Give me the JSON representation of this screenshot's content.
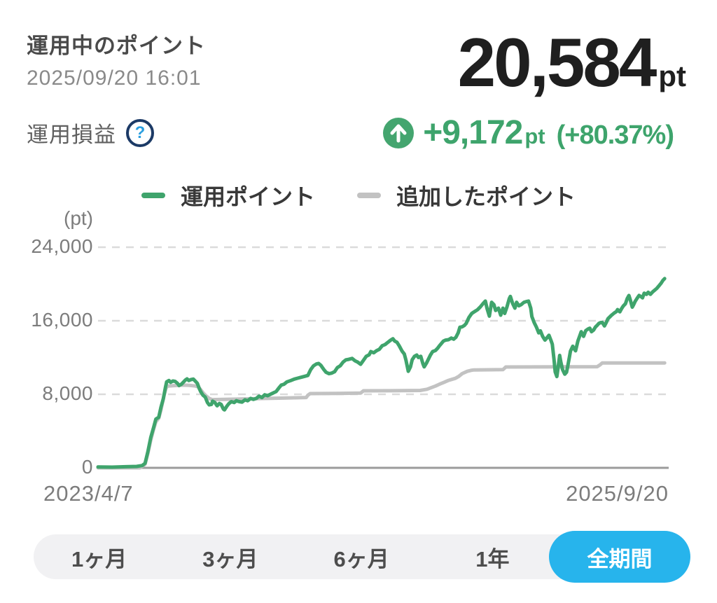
{
  "header": {
    "title": "運用中のポイント",
    "timestamp": "2025/09/20 16:01",
    "total_points": "20,584",
    "total_points_unit": "pt",
    "profit_label": "運用損益",
    "help_icon": "question-mark-circle-icon",
    "profit_icon": "up-arrow-circle-icon",
    "profit_value": "+9,172",
    "profit_unit": "pt",
    "profit_percent": "(+80.37%)"
  },
  "colors": {
    "accent_green": "#3fa46c",
    "added_line_gray": "#c2c2c2",
    "selected_blue": "#27b4ec",
    "big_number_black": "#1f1f1f",
    "axis_gray": "#9b9b9b",
    "grid_gray": "#dbdbdb",
    "help_ring_navy": "#1c3a66",
    "help_question_blue": "#2b9fe0"
  },
  "legend": [
    {
      "label": "運用ポイント",
      "color": "#3fa46c"
    },
    {
      "label": "追加したポイント",
      "color": "#c2c2c2"
    }
  ],
  "chart_data": {
    "type": "line",
    "title": "",
    "unit_label": "(pt)",
    "xlabel": "",
    "ylabel": "pt",
    "ylim": [
      0,
      26000
    ],
    "y_ticks": [
      "24,000",
      "16,000",
      "8,000",
      "0"
    ],
    "y_tick_values": [
      24000,
      16000,
      8000,
      0
    ],
    "x_start_label": "2023/4/7",
    "x_end_label": "2025/9/20",
    "grid": "horizontal dashed",
    "legend_position": "top center",
    "series": [
      {
        "name": "運用ポイント",
        "color": "#3fa46c",
        "points": [
          [
            0.0,
            100
          ],
          [
            0.025,
            80
          ],
          [
            0.049,
            120
          ],
          [
            0.068,
            150
          ],
          [
            0.078,
            250
          ],
          [
            0.083,
            500
          ],
          [
            0.088,
            1800
          ],
          [
            0.093,
            3300
          ],
          [
            0.098,
            4400
          ],
          [
            0.102,
            5300
          ],
          [
            0.107,
            5500
          ],
          [
            0.111,
            6600
          ],
          [
            0.115,
            7500
          ],
          [
            0.119,
            8800
          ],
          [
            0.121,
            9350
          ],
          [
            0.125,
            9500
          ],
          [
            0.128,
            9300
          ],
          [
            0.132,
            9450
          ],
          [
            0.136,
            9400
          ],
          [
            0.14,
            9200
          ],
          [
            0.143,
            8950
          ],
          [
            0.147,
            9100
          ],
          [
            0.151,
            9350
          ],
          [
            0.154,
            9550
          ],
          [
            0.157,
            9680
          ],
          [
            0.16,
            9500
          ],
          [
            0.164,
            9600
          ],
          [
            0.168,
            9650
          ],
          [
            0.172,
            9400
          ],
          [
            0.175,
            9200
          ],
          [
            0.178,
            8700
          ],
          [
            0.181,
            8300
          ],
          [
            0.185,
            7900
          ],
          [
            0.189,
            7700
          ],
          [
            0.193,
            7100
          ],
          [
            0.196,
            6850
          ],
          [
            0.2,
            6900
          ],
          [
            0.202,
            7250
          ],
          [
            0.206,
            7100
          ],
          [
            0.21,
            6750
          ],
          [
            0.214,
            7000
          ],
          [
            0.217,
            6900
          ],
          [
            0.221,
            6400
          ],
          [
            0.223,
            6300
          ],
          [
            0.227,
            6700
          ],
          [
            0.231,
            7000
          ],
          [
            0.235,
            7200
          ],
          [
            0.24,
            7100
          ],
          [
            0.244,
            7300
          ],
          [
            0.249,
            7200
          ],
          [
            0.254,
            7150
          ],
          [
            0.259,
            7400
          ],
          [
            0.264,
            7300
          ],
          [
            0.269,
            7550
          ],
          [
            0.274,
            7450
          ],
          [
            0.279,
            7550
          ],
          [
            0.284,
            7800
          ],
          [
            0.289,
            7650
          ],
          [
            0.294,
            7950
          ],
          [
            0.299,
            7850
          ],
          [
            0.304,
            8000
          ],
          [
            0.309,
            8150
          ],
          [
            0.314,
            8300
          ],
          [
            0.319,
            8700
          ],
          [
            0.323,
            9000
          ],
          [
            0.328,
            9100
          ],
          [
            0.333,
            9350
          ],
          [
            0.34,
            9500
          ],
          [
            0.346,
            9650
          ],
          [
            0.352,
            9750
          ],
          [
            0.358,
            9850
          ],
          [
            0.364,
            9950
          ],
          [
            0.37,
            10050
          ],
          [
            0.375,
            10700
          ],
          [
            0.38,
            11100
          ],
          [
            0.385,
            11300
          ],
          [
            0.389,
            11350
          ],
          [
            0.393,
            11150
          ],
          [
            0.398,
            10700
          ],
          [
            0.402,
            10400
          ],
          [
            0.407,
            10250
          ],
          [
            0.412,
            10300
          ],
          [
            0.417,
            10450
          ],
          [
            0.422,
            10900
          ],
          [
            0.427,
            11100
          ],
          [
            0.432,
            11500
          ],
          [
            0.437,
            11750
          ],
          [
            0.442,
            11800
          ],
          [
            0.448,
            11900
          ],
          [
            0.453,
            11650
          ],
          [
            0.458,
            11500
          ],
          [
            0.463,
            11260
          ],
          [
            0.468,
            11700
          ],
          [
            0.473,
            12140
          ],
          [
            0.478,
            12300
          ],
          [
            0.481,
            12650
          ],
          [
            0.486,
            12520
          ],
          [
            0.491,
            12750
          ],
          [
            0.496,
            12900
          ],
          [
            0.501,
            13280
          ],
          [
            0.506,
            13410
          ],
          [
            0.511,
            13650
          ],
          [
            0.516,
            13900
          ],
          [
            0.52,
            14040
          ],
          [
            0.523,
            13800
          ],
          [
            0.527,
            13660
          ],
          [
            0.531,
            13280
          ],
          [
            0.536,
            12700
          ],
          [
            0.54,
            12390
          ],
          [
            0.543,
            11700
          ],
          [
            0.547,
            10500
          ],
          [
            0.551,
            11000
          ],
          [
            0.554,
            11760
          ],
          [
            0.558,
            12140
          ],
          [
            0.562,
            12270
          ],
          [
            0.565,
            12010
          ],
          [
            0.569,
            12140
          ],
          [
            0.573,
            11300
          ],
          [
            0.575,
            10990
          ],
          [
            0.579,
            11380
          ],
          [
            0.583,
            11880
          ],
          [
            0.586,
            12270
          ],
          [
            0.59,
            12650
          ],
          [
            0.595,
            12770
          ],
          [
            0.599,
            13030
          ],
          [
            0.602,
            13280
          ],
          [
            0.609,
            13790
          ],
          [
            0.613,
            13900
          ],
          [
            0.618,
            13940
          ],
          [
            0.623,
            14120
          ],
          [
            0.627,
            14000
          ],
          [
            0.631,
            14200
          ],
          [
            0.635,
            14700
          ],
          [
            0.638,
            15300
          ],
          [
            0.642,
            15340
          ],
          [
            0.646,
            15500
          ],
          [
            0.649,
            15700
          ],
          [
            0.654,
            16360
          ],
          [
            0.659,
            16800
          ],
          [
            0.664,
            17000
          ],
          [
            0.669,
            17200
          ],
          [
            0.674,
            17500
          ],
          [
            0.679,
            17880
          ],
          [
            0.683,
            18140
          ],
          [
            0.686,
            17300
          ],
          [
            0.69,
            16500
          ],
          [
            0.694,
            18010
          ],
          [
            0.698,
            17750
          ],
          [
            0.701,
            17120
          ],
          [
            0.706,
            17370
          ],
          [
            0.71,
            16610
          ],
          [
            0.714,
            17370
          ],
          [
            0.717,
            16800
          ],
          [
            0.721,
            17500
          ],
          [
            0.725,
            18400
          ],
          [
            0.727,
            18650
          ],
          [
            0.731,
            17880
          ],
          [
            0.735,
            17370
          ],
          [
            0.738,
            18010
          ],
          [
            0.742,
            17630
          ],
          [
            0.746,
            17750
          ],
          [
            0.751,
            18010
          ],
          [
            0.756,
            18100
          ],
          [
            0.759,
            18140
          ],
          [
            0.763,
            17370
          ],
          [
            0.765,
            16460
          ],
          [
            0.769,
            15800
          ],
          [
            0.773,
            15310
          ],
          [
            0.777,
            14680
          ],
          [
            0.78,
            14900
          ],
          [
            0.784,
            14300
          ],
          [
            0.788,
            13900
          ],
          [
            0.791,
            14100
          ],
          [
            0.795,
            14420
          ],
          [
            0.799,
            13800
          ],
          [
            0.801,
            13440
          ],
          [
            0.804,
            11800
          ],
          [
            0.806,
            10440
          ],
          [
            0.809,
            9930
          ],
          [
            0.811,
            10800
          ],
          [
            0.814,
            12230
          ],
          [
            0.816,
            11500
          ],
          [
            0.819,
            10690
          ],
          [
            0.821,
            10440
          ],
          [
            0.823,
            10190
          ],
          [
            0.826,
            10400
          ],
          [
            0.828,
            11000
          ],
          [
            0.831,
            12000
          ],
          [
            0.833,
            12700
          ],
          [
            0.837,
            13230
          ],
          [
            0.84,
            12900
          ],
          [
            0.842,
            12730
          ],
          [
            0.846,
            13790
          ],
          [
            0.849,
            14300
          ],
          [
            0.852,
            14810
          ],
          [
            0.856,
            14300
          ],
          [
            0.86,
            14930
          ],
          [
            0.864,
            15100
          ],
          [
            0.867,
            15190
          ],
          [
            0.87,
            14810
          ],
          [
            0.874,
            15000
          ],
          [
            0.877,
            15320
          ],
          [
            0.88,
            15500
          ],
          [
            0.883,
            15700
          ],
          [
            0.886,
            15800
          ],
          [
            0.889,
            15820
          ],
          [
            0.893,
            15440
          ],
          [
            0.896,
            15800
          ],
          [
            0.899,
            16210
          ],
          [
            0.902,
            16400
          ],
          [
            0.905,
            16590
          ],
          [
            0.91,
            16840
          ],
          [
            0.914,
            17000
          ],
          [
            0.916,
            17220
          ],
          [
            0.92,
            16970
          ],
          [
            0.923,
            17300
          ],
          [
            0.926,
            17600
          ],
          [
            0.93,
            17860
          ],
          [
            0.933,
            18400
          ],
          [
            0.936,
            18750
          ],
          [
            0.938,
            18370
          ],
          [
            0.942,
            17480
          ],
          [
            0.944,
            17700
          ],
          [
            0.947,
            18110
          ],
          [
            0.951,
            18490
          ],
          [
            0.954,
            18750
          ],
          [
            0.958,
            18600
          ],
          [
            0.96,
            18490
          ],
          [
            0.963,
            19000
          ],
          [
            0.967,
            18870
          ],
          [
            0.97,
            19100
          ],
          [
            0.974,
            18870
          ],
          [
            0.978,
            19150
          ],
          [
            0.981,
            19300
          ],
          [
            0.985,
            19510
          ],
          [
            0.989,
            19800
          ],
          [
            0.993,
            20100
          ],
          [
            0.996,
            20400
          ],
          [
            0.999,
            20584
          ]
        ]
      },
      {
        "name": "追加したポイント",
        "color": "#c2c2c2",
        "points": [
          [
            0.0,
            0
          ],
          [
            0.074,
            0
          ],
          [
            0.083,
            400
          ],
          [
            0.088,
            1600
          ],
          [
            0.093,
            3000
          ],
          [
            0.098,
            4200
          ],
          [
            0.102,
            5000
          ],
          [
            0.107,
            5400
          ],
          [
            0.111,
            6300
          ],
          [
            0.116,
            7800
          ],
          [
            0.12,
            8700
          ],
          [
            0.123,
            8900
          ],
          [
            0.136,
            8950
          ],
          [
            0.148,
            9000
          ],
          [
            0.16,
            8980
          ],
          [
            0.172,
            8900
          ],
          [
            0.177,
            8800
          ],
          [
            0.181,
            8500
          ],
          [
            0.186,
            8100
          ],
          [
            0.191,
            7800
          ],
          [
            0.196,
            7550
          ],
          [
            0.201,
            7420
          ],
          [
            0.222,
            7450
          ],
          [
            0.259,
            7500
          ],
          [
            0.296,
            7550
          ],
          [
            0.333,
            7600
          ],
          [
            0.367,
            7650
          ],
          [
            0.37,
            7900
          ],
          [
            0.374,
            8080
          ],
          [
            0.42,
            8100
          ],
          [
            0.463,
            8130
          ],
          [
            0.468,
            8380
          ],
          [
            0.519,
            8390
          ],
          [
            0.568,
            8420
          ],
          [
            0.58,
            8550
          ],
          [
            0.595,
            8900
          ],
          [
            0.602,
            9100
          ],
          [
            0.61,
            9300
          ],
          [
            0.617,
            9490
          ],
          [
            0.63,
            9740
          ],
          [
            0.636,
            9950
          ],
          [
            0.642,
            10250
          ],
          [
            0.651,
            10500
          ],
          [
            0.659,
            10620
          ],
          [
            0.663,
            10650
          ],
          [
            0.714,
            10680
          ],
          [
            0.719,
            10970
          ],
          [
            0.88,
            11000
          ],
          [
            0.885,
            11200
          ],
          [
            0.889,
            11412
          ],
          [
            0.999,
            11412
          ]
        ]
      }
    ]
  },
  "range_buttons": {
    "options": [
      {
        "label": "1ヶ月",
        "selected": false
      },
      {
        "label": "3ヶ月",
        "selected": false
      },
      {
        "label": "6ヶ月",
        "selected": false
      },
      {
        "label": "1年",
        "selected": false
      },
      {
        "label": "全期間",
        "selected": true
      }
    ],
    "selected_color": "#27b4ec"
  }
}
